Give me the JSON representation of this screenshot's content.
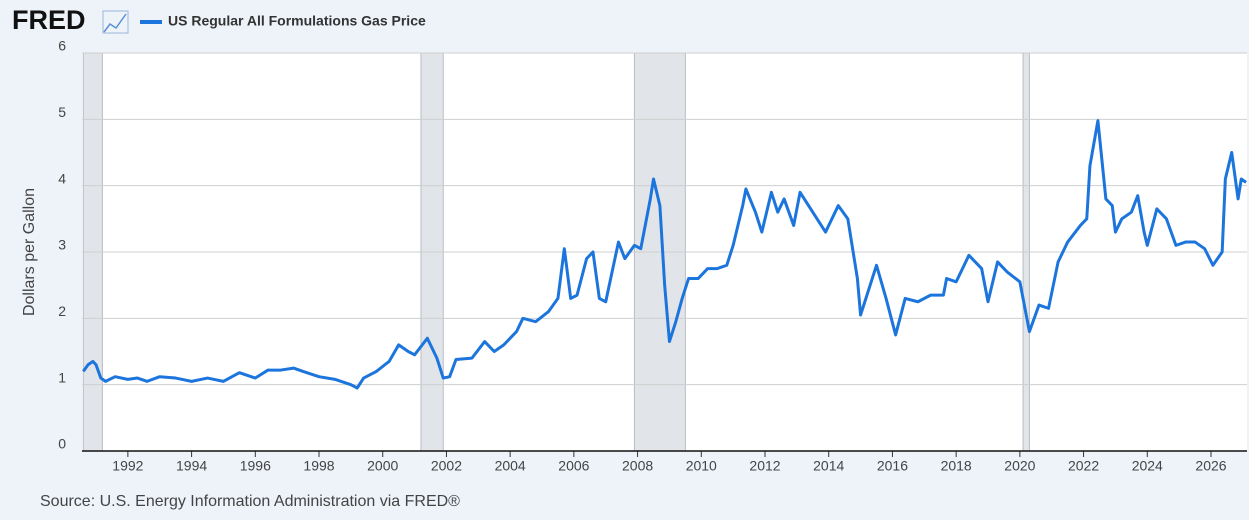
{
  "logo": "FRED",
  "chart_data": {
    "type": "line",
    "series": [
      {
        "name": "US Regular All Formulations Gas Price",
        "color": "#1c75dc",
        "x": [
          1990.6,
          1990.75,
          1990.9,
          1991.0,
          1991.15,
          1991.3,
          1991.6,
          1992.0,
          1992.3,
          1992.6,
          1993.0,
          1993.5,
          1994.0,
          1994.5,
          1995.0,
          1995.5,
          1996.0,
          1996.4,
          1996.8,
          1997.2,
          1997.5,
          1998.0,
          1998.5,
          1999.0,
          1999.2,
          1999.4,
          1999.8,
          2000.2,
          2000.5,
          2000.8,
          2001.0,
          2001.4,
          2001.7,
          2001.9,
          2002.1,
          2002.3,
          2002.8,
          2003.2,
          2003.5,
          2003.8,
          2004.2,
          2004.4,
          2004.8,
          2005.2,
          2005.5,
          2005.7,
          2005.9,
          2006.1,
          2006.4,
          2006.6,
          2006.8,
          2007.0,
          2007.4,
          2007.6,
          2007.9,
          2008.1,
          2008.4,
          2008.5,
          2008.7,
          2008.85,
          2009.0,
          2009.2,
          2009.4,
          2009.6,
          2009.9,
          2010.2,
          2010.5,
          2010.8,
          2011.0,
          2011.3,
          2011.4,
          2011.7,
          2011.9,
          2012.2,
          2012.4,
          2012.6,
          2012.9,
          2013.1,
          2013.5,
          2013.9,
          2014.3,
          2014.6,
          2014.9,
          2015.0,
          2015.3,
          2015.5,
          2015.8,
          2016.1,
          2016.4,
          2016.8,
          2017.2,
          2017.6,
          2017.7,
          2018.0,
          2018.4,
          2018.8,
          2019.0,
          2019.3,
          2019.6,
          2020.0,
          2020.3,
          2020.6,
          2020.9,
          2021.2,
          2021.5,
          2021.9,
          2022.1,
          2022.2,
          2022.45,
          2022.7,
          2022.9,
          2023.0,
          2023.2,
          2023.5,
          2023.7,
          2023.9,
          2024.0,
          2024.3,
          2024.6,
          2024.9,
          2025.2,
          2025.5,
          2025.8,
          2026.06,
          2026.35,
          2026.45,
          2026.65,
          2026.85,
          2026.95,
          2027.1
        ],
        "values": [
          1.2,
          1.3,
          1.35,
          1.3,
          1.1,
          1.05,
          1.12,
          1.08,
          1.1,
          1.05,
          1.12,
          1.1,
          1.05,
          1.1,
          1.05,
          1.18,
          1.1,
          1.22,
          1.22,
          1.25,
          1.2,
          1.12,
          1.08,
          1.0,
          0.95,
          1.1,
          1.2,
          1.35,
          1.6,
          1.5,
          1.45,
          1.7,
          1.4,
          1.1,
          1.12,
          1.38,
          1.4,
          1.65,
          1.5,
          1.6,
          1.8,
          2.0,
          1.95,
          2.1,
          2.3,
          3.05,
          2.3,
          2.35,
          2.9,
          3.0,
          2.3,
          2.25,
          3.15,
          2.9,
          3.1,
          3.05,
          3.8,
          4.1,
          3.7,
          2.5,
          1.65,
          1.95,
          2.3,
          2.6,
          2.6,
          2.75,
          2.75,
          2.8,
          3.1,
          3.7,
          3.95,
          3.6,
          3.3,
          3.9,
          3.6,
          3.8,
          3.4,
          3.9,
          3.6,
          3.3,
          3.7,
          3.5,
          2.6,
          2.05,
          2.5,
          2.8,
          2.3,
          1.75,
          2.3,
          2.25,
          2.35,
          2.35,
          2.6,
          2.55,
          2.95,
          2.75,
          2.25,
          2.85,
          2.7,
          2.55,
          1.8,
          2.2,
          2.15,
          2.85,
          3.15,
          3.4,
          3.5,
          4.3,
          4.98,
          3.8,
          3.7,
          3.3,
          3.5,
          3.6,
          3.85,
          3.3,
          3.1,
          3.65,
          3.5,
          3.1,
          3.15,
          3.15,
          3.05,
          2.8,
          3.0,
          4.1,
          4.5,
          3.8,
          4.1,
          4.05
        ]
      }
    ],
    "recessions": [
      [
        1990.6,
        1991.2
      ],
      [
        2001.2,
        2001.9
      ],
      [
        2007.9,
        2009.5
      ],
      [
        2020.1,
        2020.3
      ]
    ],
    "y_label": "Dollars per Gallon",
    "source": "Source: U.S. Energy Information Administration via FRED®",
    "xlim": [
      1990.56,
      2027.13
    ],
    "ylim": [
      0,
      6
    ],
    "xticks": [
      1992,
      1994,
      1996,
      1998,
      2000,
      2002,
      2004,
      2006,
      2008,
      2010,
      2012,
      2014,
      2016,
      2018,
      2020,
      2022,
      2024,
      2026
    ],
    "yticks": [
      0,
      1,
      2,
      3,
      4,
      5,
      6
    ],
    "grid": true
  }
}
